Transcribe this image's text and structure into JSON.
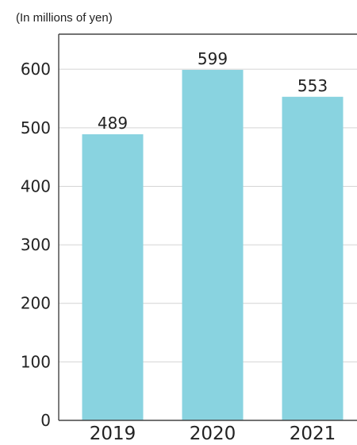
{
  "chart_data": {
    "type": "bar",
    "unit_label": "(In millions of yen)",
    "categories": [
      "2019",
      "2020",
      "2021"
    ],
    "values": [
      489,
      599,
      553
    ],
    "ylim": [
      0,
      660
    ],
    "yticks": [
      0,
      100,
      200,
      300,
      400,
      500,
      600
    ],
    "grid": true,
    "bar_color": "#89d3e0",
    "axis_color": "#444444",
    "grid_color": "#d4d4d4",
    "text_color": "#222222"
  }
}
